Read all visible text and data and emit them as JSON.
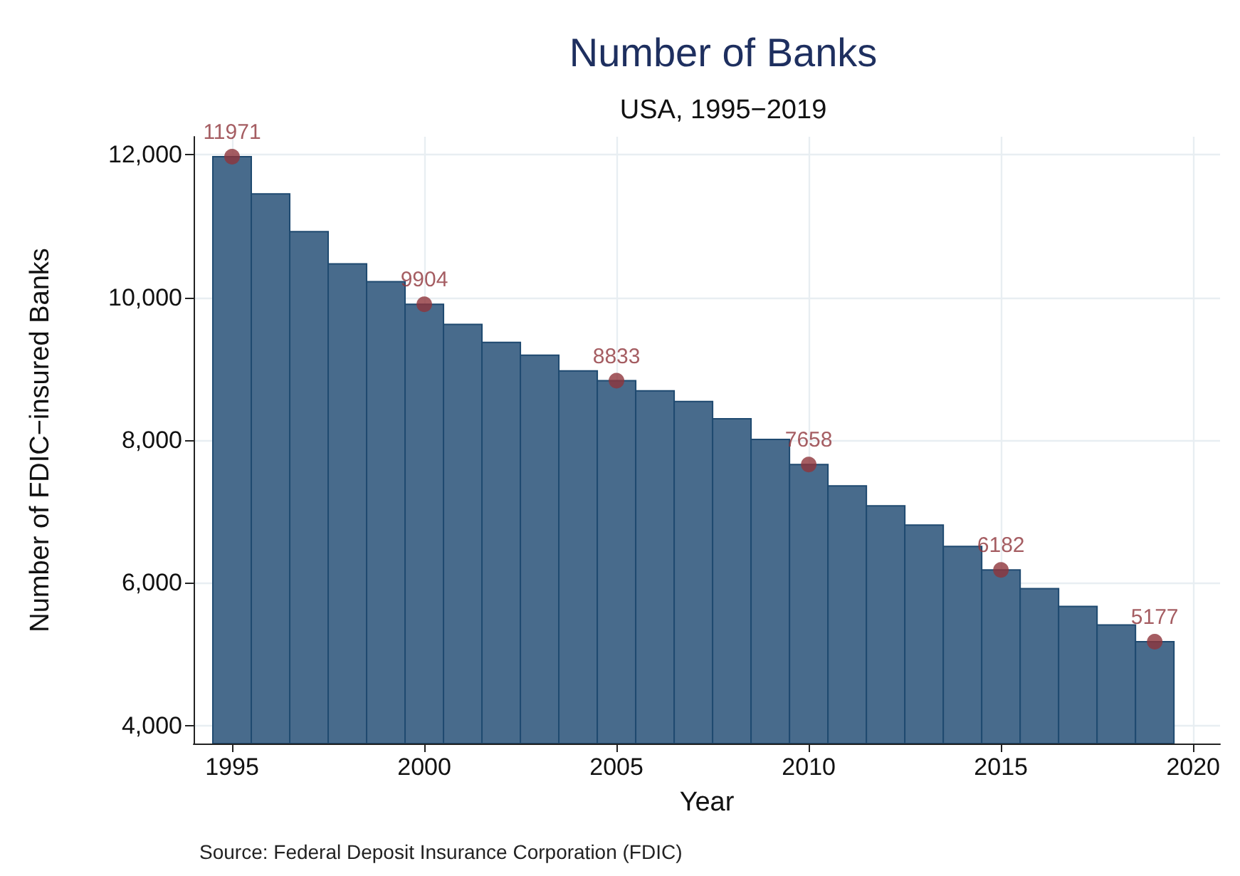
{
  "chart_data": {
    "type": "bar",
    "title": "Number of Banks",
    "subtitle": "USA, 1995−2019",
    "xlabel": "Year",
    "ylabel": "Number of FDIC−insured Banks",
    "annotations": [
      "Source: Federal Deposit Insurance Corporation (FDIC)"
    ],
    "xlim": [
      1994,
      2020.7
    ],
    "xticks": [
      1995,
      2000,
      2005,
      2010,
      2015,
      2020
    ],
    "ylim": [
      3750,
      12250
    ],
    "yticks": [
      {
        "value": 4000,
        "label": "4,000"
      },
      {
        "value": 6000,
        "label": "6,000"
      },
      {
        "value": 8000,
        "label": "8,000"
      },
      {
        "value": 10000,
        "label": "10,000"
      },
      {
        "value": 12000,
        "label": "12,000"
      }
    ],
    "grid": true,
    "x": [
      1995,
      1996,
      1997,
      1998,
      1999,
      2000,
      2001,
      2002,
      2003,
      2004,
      2005,
      2006,
      2007,
      2008,
      2009,
      2010,
      2011,
      2012,
      2013,
      2014,
      2015,
      2016,
      2017,
      2018,
      2019
    ],
    "series": [
      {
        "color": "#486b8c",
        "values": [
          11971,
          11450,
          10920,
          10470,
          10220,
          9904,
          9620,
          9370,
          9190,
          8970,
          8833,
          8690,
          8540,
          8300,
          8010,
          7658,
          7360,
          7080,
          6810,
          6510,
          6182,
          5920,
          5670,
          5410,
          5177
        ]
      },
      {
        "type": "scatter",
        "color": "#8f343b",
        "marker": "circle",
        "data_labels": true,
        "x": [
          1995,
          2000,
          2005,
          2010,
          2015,
          2019
        ],
        "values": [
          11971,
          9904,
          8833,
          7658,
          6182,
          5177
        ]
      }
    ]
  }
}
